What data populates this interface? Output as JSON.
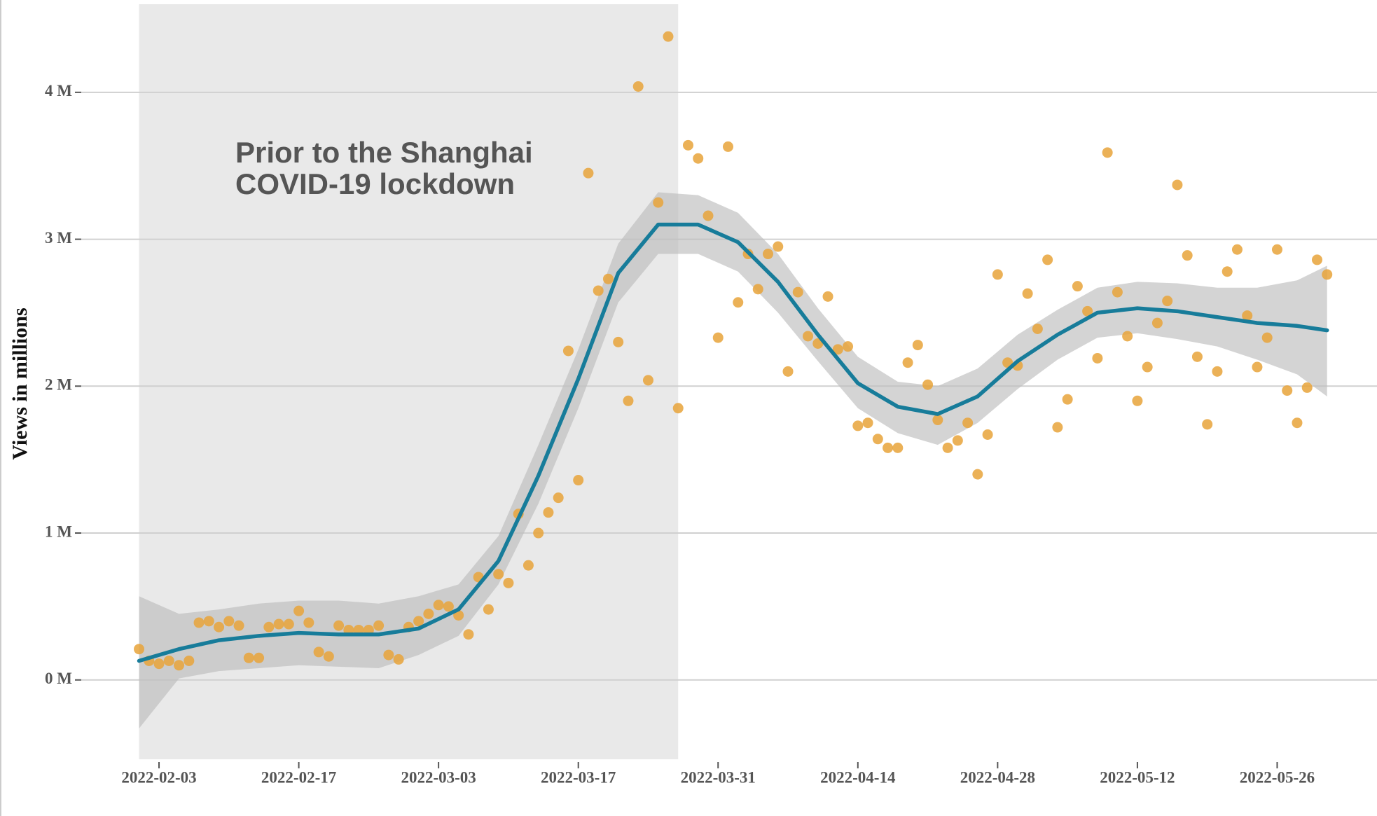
{
  "chart_data": {
    "type": "scatter",
    "y_label": "Views in millions",
    "annotation": [
      "Prior to the Shanghai",
      "COVID-19 lockdown"
    ],
    "shade": {
      "x": [
        "2022-02-01",
        "2022-03-27"
      ],
      "color": "#e9e9e9"
    },
    "grid": true,
    "xlim": [
      "2022-01-26",
      "2022-06-05"
    ],
    "xticks": [
      "2022-02-03",
      "2022-02-17",
      "2022-03-03",
      "2022-03-17",
      "2022-03-31",
      "2022-04-14",
      "2022-04-28",
      "2022-05-12",
      "2022-05-26"
    ],
    "ylim": [
      -0.54,
      4.6
    ],
    "yticks": [
      {
        "value": 0,
        "label": "0 M"
      },
      {
        "value": 1,
        "label": "1 M"
      },
      {
        "value": 2,
        "label": "2 M"
      },
      {
        "value": 3,
        "label": "3 M"
      },
      {
        "value": 4,
        "label": "4 M"
      }
    ],
    "x": [
      "2022-02-01",
      "2022-02-02",
      "2022-02-03",
      "2022-02-04",
      "2022-02-05",
      "2022-02-06",
      "2022-02-07",
      "2022-02-08",
      "2022-02-09",
      "2022-02-10",
      "2022-02-11",
      "2022-02-12",
      "2022-02-13",
      "2022-02-14",
      "2022-02-15",
      "2022-02-16",
      "2022-02-17",
      "2022-02-18",
      "2022-02-19",
      "2022-02-20",
      "2022-02-21",
      "2022-02-22",
      "2022-02-23",
      "2022-02-24",
      "2022-02-25",
      "2022-02-26",
      "2022-02-27",
      "2022-02-28",
      "2022-03-01",
      "2022-03-02",
      "2022-03-03",
      "2022-03-04",
      "2022-03-05",
      "2022-03-06",
      "2022-03-07",
      "2022-03-08",
      "2022-03-09",
      "2022-03-10",
      "2022-03-11",
      "2022-03-12",
      "2022-03-13",
      "2022-03-14",
      "2022-03-15",
      "2022-03-16",
      "2022-03-17",
      "2022-03-18",
      "2022-03-19",
      "2022-03-20",
      "2022-03-21",
      "2022-03-22",
      "2022-03-23",
      "2022-03-24",
      "2022-03-25",
      "2022-03-26",
      "2022-03-27",
      "2022-03-28",
      "2022-03-29",
      "2022-03-30",
      "2022-03-31",
      "2022-04-01",
      "2022-04-02",
      "2022-04-03",
      "2022-04-04",
      "2022-04-05",
      "2022-04-06",
      "2022-04-07",
      "2022-04-08",
      "2022-04-09",
      "2022-04-10",
      "2022-04-11",
      "2022-04-12",
      "2022-04-13",
      "2022-04-14",
      "2022-04-15",
      "2022-04-16",
      "2022-04-17",
      "2022-04-18",
      "2022-04-19",
      "2022-04-20",
      "2022-04-21",
      "2022-04-22",
      "2022-04-23",
      "2022-04-24",
      "2022-04-25",
      "2022-04-26",
      "2022-04-27",
      "2022-04-28",
      "2022-04-29",
      "2022-04-30",
      "2022-05-01",
      "2022-05-02",
      "2022-05-03",
      "2022-05-04",
      "2022-05-05",
      "2022-05-06",
      "2022-05-07",
      "2022-05-08",
      "2022-05-09",
      "2022-05-10",
      "2022-05-11",
      "2022-05-12",
      "2022-05-13",
      "2022-05-14",
      "2022-05-15",
      "2022-05-16",
      "2022-05-17",
      "2022-05-18",
      "2022-05-19",
      "2022-05-20",
      "2022-05-21",
      "2022-05-22",
      "2022-05-23",
      "2022-05-24",
      "2022-05-25",
      "2022-05-26",
      "2022-05-27",
      "2022-05-28",
      "2022-05-29",
      "2022-05-30",
      "2022-05-31"
    ],
    "series": [
      {
        "color": "#e8a33a",
        "values": [
          0.21,
          0.13,
          0.11,
          0.13,
          0.1,
          0.13,
          0.39,
          0.4,
          0.36,
          0.4,
          0.37,
          0.15,
          0.15,
          0.36,
          0.38,
          0.38,
          0.47,
          0.39,
          0.19,
          0.16,
          0.37,
          0.34,
          0.34,
          0.34,
          0.37,
          0.17,
          0.14,
          0.36,
          0.4,
          0.45,
          0.51,
          0.5,
          0.44,
          0.31,
          0.7,
          0.48,
          0.72,
          0.66,
          1.13,
          0.78,
          1.0,
          1.14,
          1.24,
          2.24,
          1.36,
          3.45,
          2.65,
          2.73,
          2.3,
          1.9,
          4.04,
          2.04,
          3.25,
          4.38,
          1.85,
          3.64,
          3.55,
          3.16,
          2.33,
          3.63,
          2.57,
          2.9,
          2.66,
          2.9,
          2.95,
          2.1,
          2.64,
          2.34,
          2.29,
          2.61,
          2.25,
          2.27,
          1.73,
          1.75,
          1.64,
          1.58,
          1.58,
          2.16,
          2.28,
          2.01,
          1.77,
          1.58,
          1.63,
          1.75,
          1.4,
          1.67,
          2.76,
          2.16,
          2.14,
          2.63,
          2.39,
          2.86,
          1.72,
          1.91,
          2.68,
          2.51,
          2.19,
          3.59,
          2.64,
          2.34,
          1.9,
          2.13,
          2.43,
          2.58,
          3.37,
          2.89,
          2.2,
          1.74,
          2.1,
          2.78,
          2.93,
          2.48,
          2.13,
          2.33,
          2.93,
          1.97,
          1.75,
          1.99,
          2.86,
          2.76
        ]
      }
    ],
    "smooth": {
      "color": "#177c9a",
      "band_color": "#bdbdbd",
      "x": [
        "2022-02-01",
        "2022-02-05",
        "2022-02-09",
        "2022-02-13",
        "2022-02-17",
        "2022-02-21",
        "2022-02-25",
        "2022-03-01",
        "2022-03-05",
        "2022-03-09",
        "2022-03-13",
        "2022-03-17",
        "2022-03-21",
        "2022-03-25",
        "2022-03-29",
        "2022-04-02",
        "2022-04-06",
        "2022-04-10",
        "2022-04-14",
        "2022-04-18",
        "2022-04-22",
        "2022-04-26",
        "2022-04-30",
        "2022-05-04",
        "2022-05-08",
        "2022-05-12",
        "2022-05-16",
        "2022-05-20",
        "2022-05-24",
        "2022-05-28",
        "2022-05-31"
      ],
      "values": [
        0.13,
        0.21,
        0.27,
        0.3,
        0.32,
        0.31,
        0.31,
        0.35,
        0.48,
        0.81,
        1.39,
        2.05,
        2.77,
        3.1,
        3.1,
        2.98,
        2.71,
        2.35,
        2.02,
        1.86,
        1.81,
        1.93,
        2.17,
        2.35,
        2.5,
        2.53,
        2.51,
        2.47,
        2.43,
        2.41,
        2.38
      ],
      "lower": [
        -0.33,
        0.01,
        0.06,
        0.08,
        0.1,
        0.09,
        0.08,
        0.17,
        0.3,
        0.65,
        1.2,
        1.85,
        2.57,
        2.9,
        2.9,
        2.78,
        2.5,
        2.17,
        1.85,
        1.68,
        1.6,
        1.75,
        1.98,
        2.18,
        2.33,
        2.36,
        2.32,
        2.27,
        2.18,
        2.08,
        1.93
      ],
      "upper": [
        0.57,
        0.45,
        0.48,
        0.52,
        0.54,
        0.54,
        0.52,
        0.57,
        0.65,
        0.98,
        1.6,
        2.25,
        2.97,
        3.32,
        3.3,
        3.18,
        2.9,
        2.53,
        2.2,
        2.03,
        2.0,
        2.12,
        2.35,
        2.52,
        2.67,
        2.71,
        2.7,
        2.67,
        2.67,
        2.72,
        2.82
      ]
    }
  }
}
